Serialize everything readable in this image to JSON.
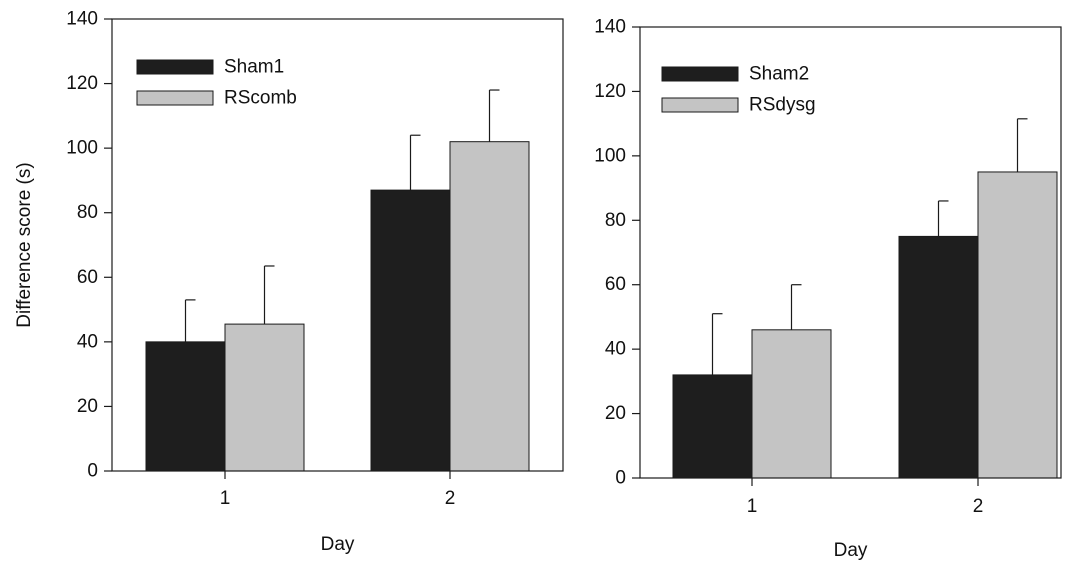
{
  "chart_data": [
    {
      "type": "bar",
      "categories": [
        "1",
        "2"
      ],
      "xlabel": "Day",
      "ylabel": "Difference score (s)",
      "ylim": [
        0,
        140
      ],
      "yticks": [
        0,
        20,
        40,
        60,
        80,
        100,
        120,
        140
      ],
      "grid": false,
      "legend": "top-left",
      "series": [
        {
          "name": "Sham1",
          "color": "#1e1e1e",
          "values": [
            40,
            87
          ],
          "errors": [
            13,
            17
          ]
        },
        {
          "name": "RScomb",
          "color": "#c4c4c4",
          "values": [
            45.5,
            102
          ],
          "errors": [
            18,
            16
          ]
        }
      ]
    },
    {
      "type": "bar",
      "categories": [
        "1",
        "2"
      ],
      "xlabel": "Day",
      "ylabel": "",
      "ylim": [
        0,
        140
      ],
      "yticks": [
        0,
        20,
        40,
        60,
        80,
        100,
        120,
        140
      ],
      "grid": false,
      "legend": "top-left",
      "series": [
        {
          "name": "Sham2",
          "color": "#1e1e1e",
          "values": [
            32,
            75
          ],
          "errors": [
            19,
            11
          ]
        },
        {
          "name": "RSdysg",
          "color": "#c4c4c4",
          "values": [
            46,
            95
          ],
          "errors": [
            14,
            16.5
          ]
        }
      ]
    }
  ]
}
